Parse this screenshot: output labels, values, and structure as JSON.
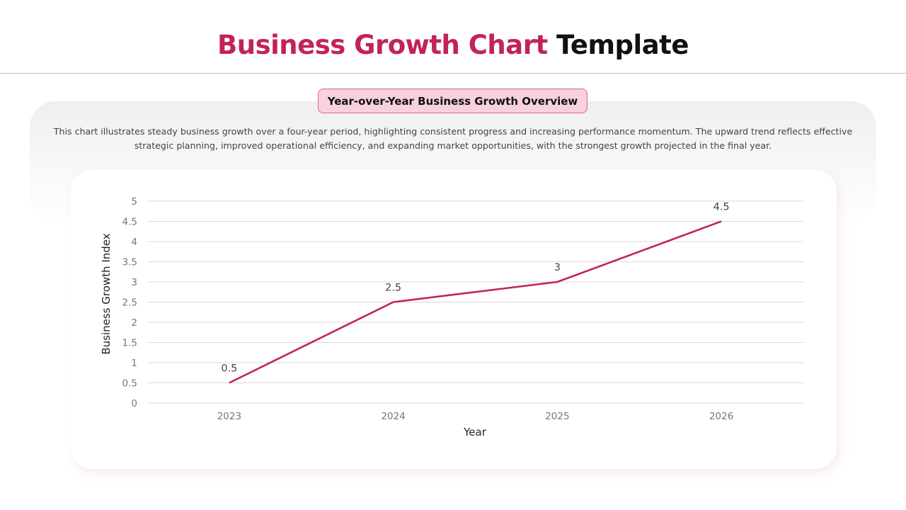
{
  "header": {
    "title_part1": "Business Growth Chart",
    "title_part2": "Template"
  },
  "badge": "Year-over-Year Business Growth Overview",
  "description": "This chart illustrates steady business growth over a four-year period, highlighting consistent progress and increasing performance momentum. The upward trend reflects effective strategic planning, improved operational efficiency, and expanding market opportunities, with the strongest growth projected in the final year.",
  "chart_data": {
    "type": "line",
    "categories": [
      "2023",
      "2024",
      "2025",
      "2026"
    ],
    "values": [
      0.5,
      2.5,
      3,
      4.5
    ],
    "data_labels": [
      "0.5",
      "2.5",
      "3",
      "4.5"
    ],
    "xlabel": "Year",
    "ylabel": "Business Growth Index",
    "ylim": [
      0,
      5
    ],
    "yticks": [
      "0",
      "0.5",
      "1",
      "1.5",
      "2",
      "2.5",
      "3",
      "3.5",
      "4",
      "4.5",
      "5"
    ],
    "grid": true,
    "line_color": "#c1235a"
  }
}
